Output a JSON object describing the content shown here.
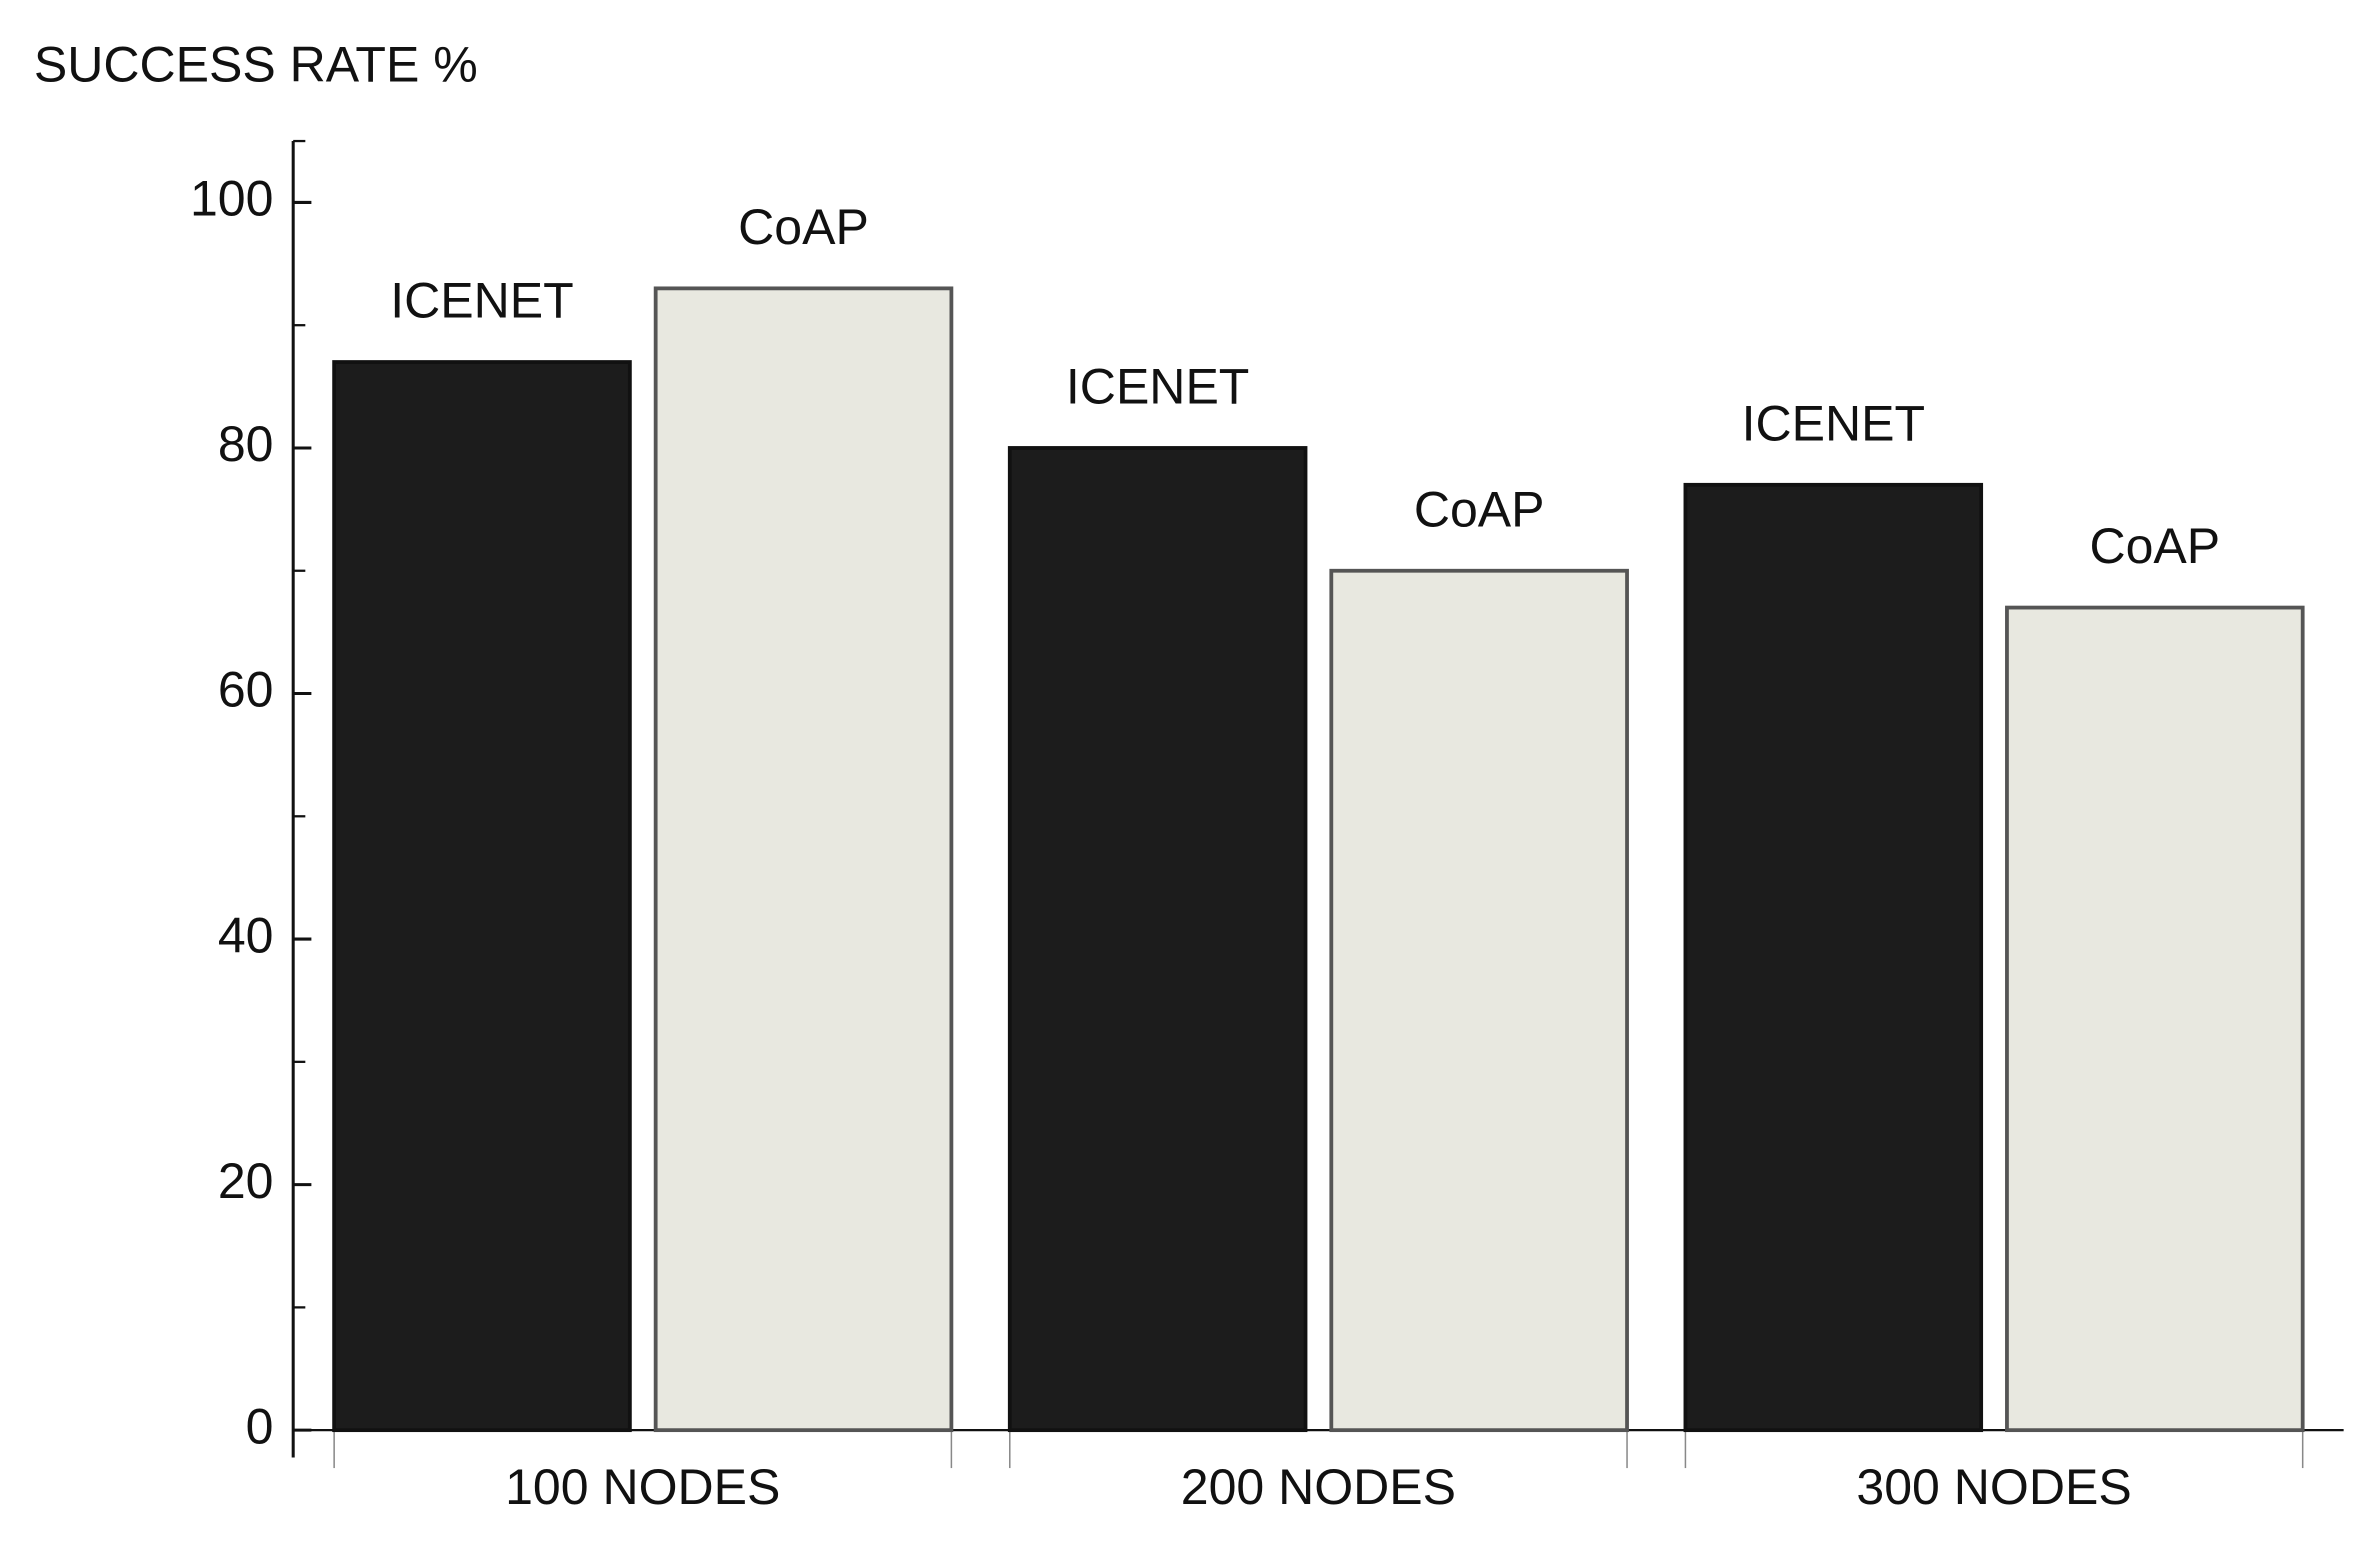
{
  "chart_data": {
    "type": "bar",
    "y_label": "SUCCESS RATE %",
    "categories": [
      "100 NODES",
      "200 NODES",
      "300 NODES"
    ],
    "series": [
      {
        "name": "ICENET",
        "color": "#1c1c1c",
        "values": [
          87,
          80,
          77
        ]
      },
      {
        "name": "CoAP",
        "color": "#e8e8e0",
        "values": [
          93,
          70,
          67
        ]
      }
    ],
    "ylim": [
      0,
      105
    ],
    "yticks": [
      0,
      20,
      40,
      60,
      80,
      100
    ]
  }
}
